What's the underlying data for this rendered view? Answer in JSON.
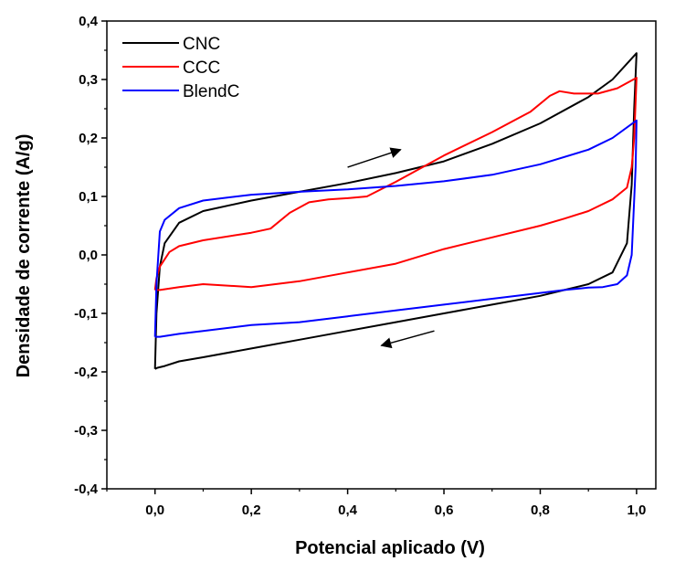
{
  "chart_data": {
    "type": "line",
    "title": "",
    "xlabel": "Potencial aplicado (V)",
    "ylabel": "Densidade de corrente (A/g)",
    "xlim": [
      -0.1,
      1.04
    ],
    "ylim": [
      -0.4,
      0.4
    ],
    "x_ticks": [
      {
        "v": 0.0,
        "label": "0,0"
      },
      {
        "v": 0.2,
        "label": "0,2"
      },
      {
        "v": 0.4,
        "label": "0,4"
      },
      {
        "v": 0.6,
        "label": "0,6"
      },
      {
        "v": 0.8,
        "label": "0,8"
      },
      {
        "v": 1.0,
        "label": "1,0"
      }
    ],
    "y_ticks": [
      {
        "v": -0.4,
        "label": "-0,4"
      },
      {
        "v": -0.3,
        "label": "-0,3"
      },
      {
        "v": -0.2,
        "label": "-0,2"
      },
      {
        "v": -0.1,
        "label": "-0,1"
      },
      {
        "v": 0.0,
        "label": "0,0"
      },
      {
        "v": 0.1,
        "label": "0,1"
      },
      {
        "v": 0.2,
        "label": "0,2"
      },
      {
        "v": 0.3,
        "label": "0,3"
      },
      {
        "v": 0.4,
        "label": "0,4"
      }
    ],
    "legend_position": "top-left",
    "series": [
      {
        "name": "CNC",
        "color": "#000000",
        "x": [
          0.0,
          0.003,
          0.01,
          0.02,
          0.05,
          0.1,
          0.2,
          0.3,
          0.4,
          0.5,
          0.6,
          0.7,
          0.8,
          0.9,
          0.95,
          1.0,
          0.995,
          0.99,
          0.98,
          0.95,
          0.9,
          0.85,
          0.8,
          0.7,
          0.6,
          0.5,
          0.4,
          0.3,
          0.2,
          0.1,
          0.05,
          0.02,
          0.005,
          0.0,
          0.0
        ],
        "y": [
          -0.195,
          -0.1,
          -0.02,
          0.02,
          0.055,
          0.075,
          0.093,
          0.108,
          0.123,
          0.14,
          0.16,
          0.19,
          0.225,
          0.27,
          0.3,
          0.345,
          0.25,
          0.12,
          0.02,
          -0.03,
          -0.05,
          -0.06,
          -0.07,
          -0.085,
          -0.1,
          -0.115,
          -0.13,
          -0.145,
          -0.16,
          -0.175,
          -0.182,
          -0.19,
          -0.193,
          -0.195,
          -0.195
        ]
      },
      {
        "name": "CCC",
        "color": "#ff0000",
        "x": [
          0.0,
          0.003,
          0.01,
          0.03,
          0.05,
          0.1,
          0.2,
          0.24,
          0.28,
          0.32,
          0.36,
          0.4,
          0.44,
          0.5,
          0.6,
          0.7,
          0.78,
          0.82,
          0.84,
          0.87,
          0.92,
          0.96,
          1.0,
          0.995,
          0.99,
          0.98,
          0.95,
          0.9,
          0.85,
          0.8,
          0.7,
          0.6,
          0.5,
          0.4,
          0.3,
          0.2,
          0.1,
          0.05,
          0.01,
          0.0
        ],
        "y": [
          -0.06,
          -0.04,
          -0.02,
          0.005,
          0.015,
          0.025,
          0.038,
          0.045,
          0.072,
          0.09,
          0.095,
          0.097,
          0.1,
          0.125,
          0.17,
          0.21,
          0.245,
          0.272,
          0.28,
          0.276,
          0.276,
          0.285,
          0.303,
          0.2,
          0.15,
          0.115,
          0.095,
          0.075,
          0.062,
          0.05,
          0.03,
          0.01,
          -0.015,
          -0.03,
          -0.045,
          -0.055,
          -0.05,
          -0.055,
          -0.06,
          -0.06
        ]
      },
      {
        "name": "BlendC",
        "color": "#0000ff",
        "x": [
          0.0,
          0.003,
          0.01,
          0.02,
          0.05,
          0.1,
          0.2,
          0.3,
          0.4,
          0.5,
          0.6,
          0.7,
          0.8,
          0.9,
          0.95,
          1.0,
          0.998,
          0.99,
          0.98,
          0.96,
          0.93,
          0.9,
          0.85,
          0.8,
          0.7,
          0.6,
          0.5,
          0.4,
          0.3,
          0.2,
          0.1,
          0.05,
          0.01,
          0.0
        ],
        "y": [
          -0.14,
          -0.05,
          0.04,
          0.06,
          0.08,
          0.093,
          0.103,
          0.108,
          0.112,
          0.118,
          0.126,
          0.137,
          0.155,
          0.18,
          0.2,
          0.23,
          0.15,
          0.0,
          -0.035,
          -0.05,
          -0.055,
          -0.056,
          -0.06,
          -0.065,
          -0.075,
          -0.085,
          -0.095,
          -0.105,
          -0.115,
          -0.12,
          -0.13,
          -0.135,
          -0.14,
          -0.14
        ]
      }
    ],
    "annotations": [
      {
        "type": "arrow",
        "from": [
          0.4,
          0.15
        ],
        "to": [
          0.51,
          0.18
        ],
        "direction": "forward"
      },
      {
        "type": "arrow",
        "from": [
          0.58,
          -0.13
        ],
        "to": [
          0.47,
          -0.155
        ],
        "direction": "reverse"
      }
    ]
  }
}
